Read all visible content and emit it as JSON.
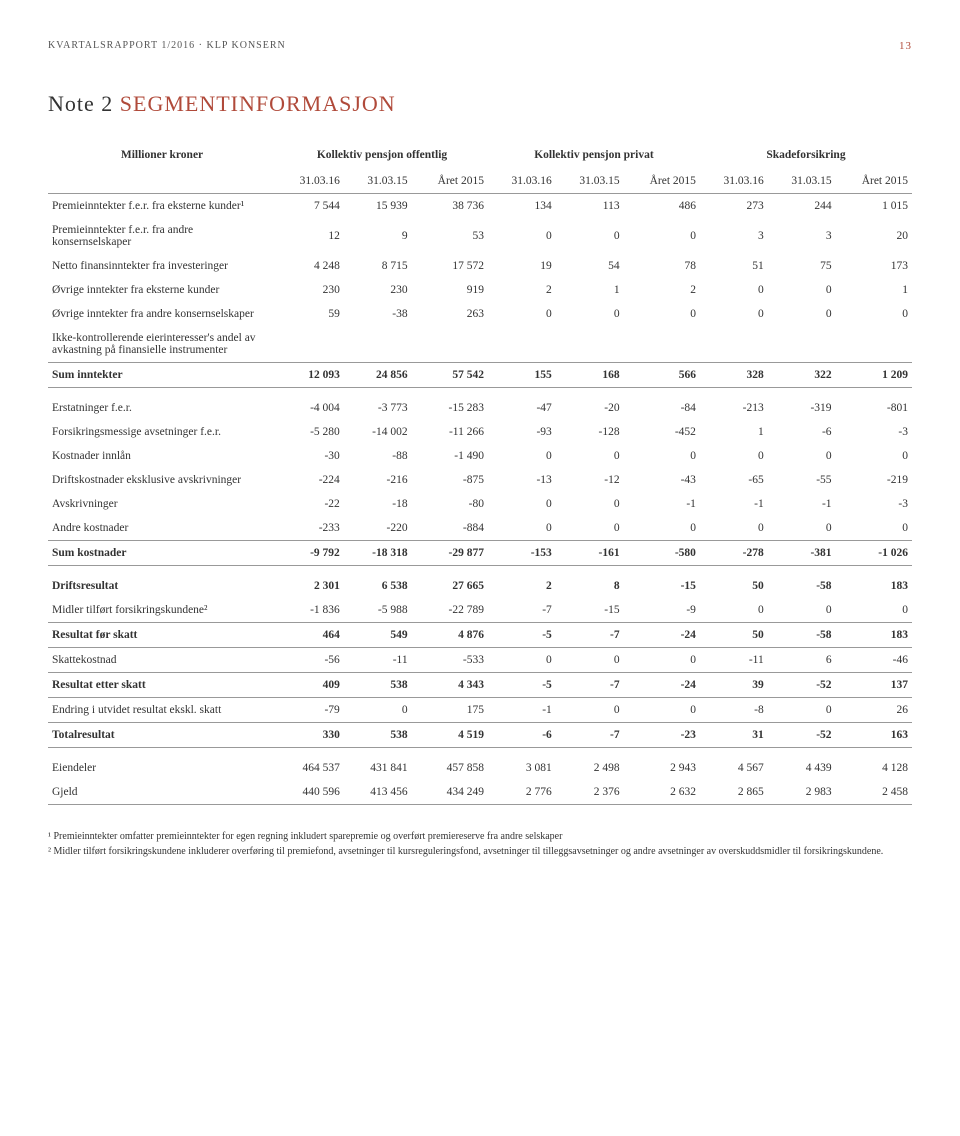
{
  "header": {
    "text": "KVARTALSRAPPORT 1/2016 · KLP KONSERN",
    "page": "13"
  },
  "noteTitle": {
    "prefix": "Note 2",
    "rest": " SEGMENTINFORMASJON"
  },
  "columns": {
    "rowLabel": "Millioner kroner",
    "groups": [
      "Kollektiv pensjon offentlig",
      "Kollektiv pensjon privat",
      "Skadeforsikring"
    ],
    "sub": [
      "31.03.16",
      "31.03.15",
      "Året 2015",
      "31.03.16",
      "31.03.15",
      "Året 2015",
      "31.03.16",
      "31.03.15",
      "Året 2015"
    ]
  },
  "rows": [
    {
      "label": "Premieinntekter f.e.r. fra eksterne kunder¹",
      "v": [
        "7 544",
        "15 939",
        "38 736",
        "134",
        "113",
        "486",
        "273",
        "244",
        "1 015"
      ]
    },
    {
      "label": "Premieinntekter f.e.r. fra andre konsernselskaper",
      "v": [
        "12",
        "9",
        "53",
        "0",
        "0",
        "0",
        "3",
        "3",
        "20"
      ]
    },
    {
      "label": "Netto finansinntekter fra investeringer",
      "v": [
        "4 248",
        "8 715",
        "17 572",
        "19",
        "54",
        "78",
        "51",
        "75",
        "173"
      ]
    },
    {
      "label": "Øvrige inntekter fra eksterne kunder",
      "v": [
        "230",
        "230",
        "919",
        "2",
        "1",
        "2",
        "0",
        "0",
        "1"
      ]
    },
    {
      "label": "Øvrige inntekter fra andre konsernselskaper",
      "v": [
        "59",
        "-38",
        "263",
        "0",
        "0",
        "0",
        "0",
        "0",
        "0"
      ]
    },
    {
      "label": "Ikke-kontrollerende eierinteresser's andel av avkastning på finansielle instrumenter",
      "v": [
        "",
        "",
        "",
        "",
        "",
        "",
        "",
        "",
        ""
      ]
    },
    {
      "label": "Sum inntekter",
      "bold": true,
      "lineAbove": true,
      "lineBelow": true,
      "v": [
        "12 093",
        "24 856",
        "57 542",
        "155",
        "168",
        "566",
        "328",
        "322",
        "1 209"
      ]
    },
    {
      "label": "Erstatninger f.e.r.",
      "gap": true,
      "v": [
        "-4 004",
        "-3 773",
        "-15 283",
        "-47",
        "-20",
        "-84",
        "-213",
        "-319",
        "-801"
      ]
    },
    {
      "label": "Forsikringsmessige avsetninger f.e.r.",
      "v": [
        "-5 280",
        "-14 002",
        "-11 266",
        "-93",
        "-128",
        "-452",
        "1",
        "-6",
        "-3"
      ]
    },
    {
      "label": "Kostnader innlån",
      "v": [
        "-30",
        "-88",
        "-1 490",
        "0",
        "0",
        "0",
        "0",
        "0",
        "0"
      ]
    },
    {
      "label": "Driftskostnader eksklusive avskrivninger",
      "v": [
        "-224",
        "-216",
        "-875",
        "-13",
        "-12",
        "-43",
        "-65",
        "-55",
        "-219"
      ]
    },
    {
      "label": "Avskrivninger",
      "v": [
        "-22",
        "-18",
        "-80",
        "0",
        "0",
        "-1",
        "-1",
        "-1",
        "-3"
      ]
    },
    {
      "label": "Andre kostnader",
      "v": [
        "-233",
        "-220",
        "-884",
        "0",
        "0",
        "0",
        "0",
        "0",
        "0"
      ]
    },
    {
      "label": "Sum kostnader",
      "bold": true,
      "lineAbove": true,
      "lineBelow": true,
      "v": [
        "-9 792",
        "-18 318",
        "-29 877",
        "-153",
        "-161",
        "-580",
        "-278",
        "-381",
        "-1 026"
      ]
    },
    {
      "label": "Driftsresultat",
      "bold": true,
      "gap": true,
      "v": [
        "2 301",
        "6 538",
        "27 665",
        "2",
        "8",
        "-15",
        "50",
        "-58",
        "183"
      ]
    },
    {
      "label": "Midler tilført forsikringskundene²",
      "v": [
        "-1 836",
        "-5 988",
        "-22 789",
        "-7",
        "-15",
        "-9",
        "0",
        "0",
        "0"
      ]
    },
    {
      "label": "Resultat før skatt",
      "bold": true,
      "lineAbove": true,
      "lineBelow": true,
      "v": [
        "464",
        "549",
        "4 876",
        "-5",
        "-7",
        "-24",
        "50",
        "-58",
        "183"
      ]
    },
    {
      "label": "Skattekostnad",
      "v": [
        "-56",
        "-11",
        "-533",
        "0",
        "0",
        "0",
        "-11",
        "6",
        "-46"
      ]
    },
    {
      "label": "Resultat etter skatt",
      "bold": true,
      "lineAbove": true,
      "lineBelow": true,
      "v": [
        "409",
        "538",
        "4 343",
        "-5",
        "-7",
        "-24",
        "39",
        "-52",
        "137"
      ]
    },
    {
      "label": "Endring i utvidet resultat ekskl. skatt",
      "v": [
        "-79",
        "0",
        "175",
        "-1",
        "0",
        "0",
        "-8",
        "0",
        "26"
      ]
    },
    {
      "label": "Totalresultat",
      "bold": true,
      "lineAbove": true,
      "lineBelow": true,
      "v": [
        "330",
        "538",
        "4 519",
        "-6",
        "-7",
        "-23",
        "31",
        "-52",
        "163"
      ]
    },
    {
      "label": "Eiendeler",
      "gap": true,
      "v": [
        "464 537",
        "431 841",
        "457 858",
        "3 081",
        "2 498",
        "2 943",
        "4 567",
        "4 439",
        "4 128"
      ]
    },
    {
      "label": "Gjeld",
      "lineBelow": true,
      "v": [
        "440 596",
        "413 456",
        "434 249",
        "2 776",
        "2 376",
        "2 632",
        "2 865",
        "2 983",
        "2 458"
      ]
    }
  ],
  "footnotes": [
    "¹ Premieinntekter omfatter premieinntekter for egen regning inkludert sparepremie og overført premiereserve fra andre selskaper",
    "² Midler tilført forsikringskundene inkluderer overføring til premiefond, avsetninger til kursreguleringsfond, avsetninger til tilleggsavsetninger og andre avsetninger av overskuddsmidler til forsikringskundene."
  ]
}
